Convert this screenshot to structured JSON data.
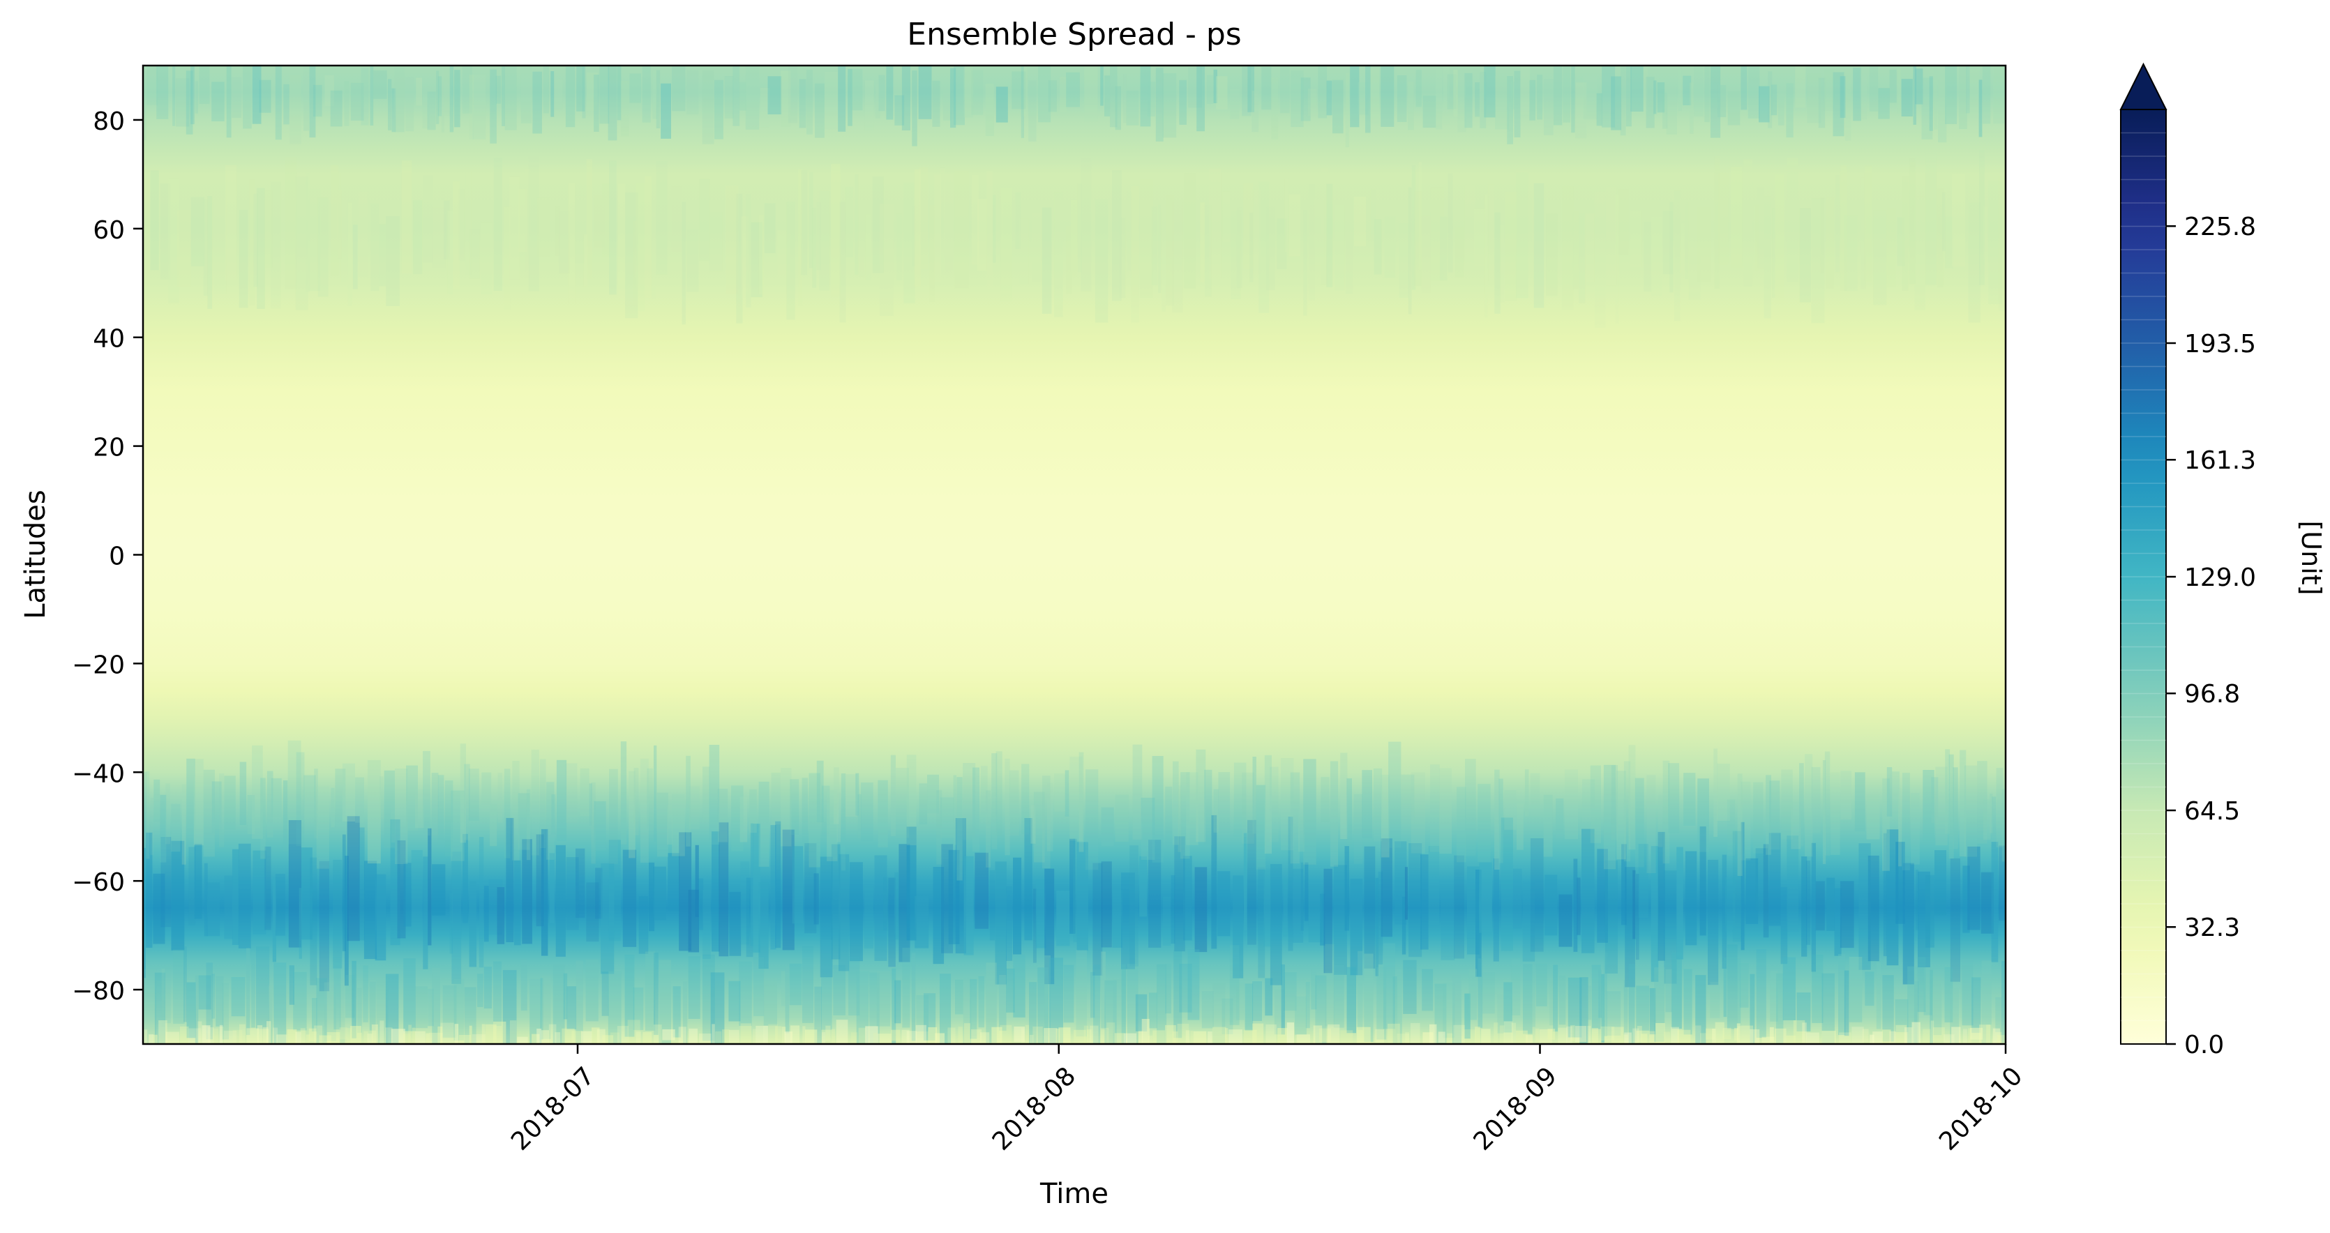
{
  "chart_data": {
    "type": "heatmap",
    "title": "Ensemble Spread - ps",
    "xlabel": "Time",
    "ylabel": "Latitudes",
    "x_range": [
      "2018-06-03",
      "2018-10-01"
    ],
    "x_ticks": [
      {
        "date": "2018-07-01",
        "label": "2018-07"
      },
      {
        "date": "2018-08-01",
        "label": "2018-08"
      },
      {
        "date": "2018-09-01",
        "label": "2018-09"
      },
      {
        "date": "2018-10-01",
        "label": "2018-10"
      }
    ],
    "ylim": [
      -90,
      90
    ],
    "y_ticks": [
      -80,
      -60,
      -40,
      -20,
      0,
      20,
      40,
      60,
      80
    ],
    "y_tick_labels": [
      "−80",
      "−60",
      "−40",
      "−20",
      "0",
      "20",
      "40",
      "60",
      "80"
    ],
    "latitude_profile": [
      {
        "lat": -90,
        "value": 45
      },
      {
        "lat": -85,
        "value": 82
      },
      {
        "lat": -80,
        "value": 95
      },
      {
        "lat": -75,
        "value": 110
      },
      {
        "lat": -70,
        "value": 135
      },
      {
        "lat": -65,
        "value": 155
      },
      {
        "lat": -60,
        "value": 140
      },
      {
        "lat": -55,
        "value": 118
      },
      {
        "lat": -50,
        "value": 100
      },
      {
        "lat": -45,
        "value": 85
      },
      {
        "lat": -40,
        "value": 68
      },
      {
        "lat": -35,
        "value": 55
      },
      {
        "lat": -30,
        "value": 42
      },
      {
        "lat": -25,
        "value": 30
      },
      {
        "lat": -20,
        "value": 22
      },
      {
        "lat": -10,
        "value": 16
      },
      {
        "lat": 0,
        "value": 14
      },
      {
        "lat": 10,
        "value": 15
      },
      {
        "lat": 20,
        "value": 20
      },
      {
        "lat": 30,
        "value": 24
      },
      {
        "lat": 40,
        "value": 38
      },
      {
        "lat": 50,
        "value": 52
      },
      {
        "lat": 60,
        "value": 58
      },
      {
        "lat": 70,
        "value": 55
      },
      {
        "lat": 80,
        "value": 72
      },
      {
        "lat": 85,
        "value": 82
      },
      {
        "lat": 90,
        "value": 78
      }
    ],
    "colorbar": {
      "label": "[Unit]",
      "min": 0.0,
      "max": 258.0,
      "extend": "max",
      "tick_values": [
        0.0,
        32.3,
        64.5,
        96.8,
        129.0,
        161.3,
        193.5,
        225.8
      ],
      "tick_labels": [
        "0.0",
        "32.3",
        "64.5",
        "96.8",
        "129.0",
        "161.3",
        "193.5",
        "225.8"
      ],
      "levels": 40,
      "colormap": "YlGnBu",
      "colors": [
        "#ffffd9",
        "#edf8b1",
        "#c7e9b4",
        "#7fcdbb",
        "#41b6c4",
        "#1d91c0",
        "#225ea8",
        "#253494",
        "#081d58"
      ]
    }
  }
}
